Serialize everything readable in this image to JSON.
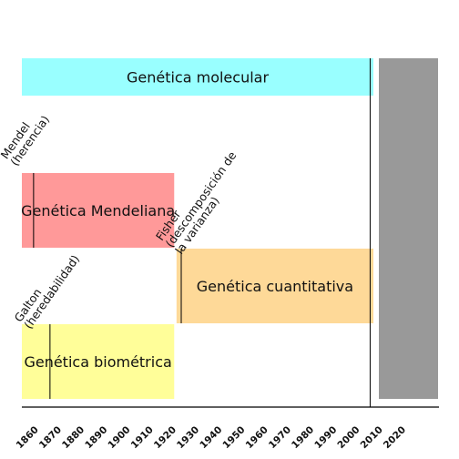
{
  "diagram": {
    "bands": [
      {
        "id": "molecular",
        "label": "Genética molecular",
        "start": 1860,
        "end": 2010,
        "row": "top",
        "color": "#99ffff"
      },
      {
        "id": "mendeliana",
        "label": "Genética Mendeliana",
        "start": 1860,
        "end": 1925,
        "row": "upper",
        "color": "#ff9999"
      },
      {
        "id": "cuantitativa",
        "label": "Genética cuantitativa",
        "start": 1926,
        "end": 2010,
        "row": "middle",
        "color": "#fed998"
      },
      {
        "id": "biometrica",
        "label": "Genética biométrica",
        "start": 1860,
        "end": 1925,
        "row": "bottom",
        "color": "#fffe99"
      },
      {
        "id": "future",
        "label": "",
        "start": 2011,
        "end": 2035,
        "row": "full",
        "color": "#999999"
      }
    ],
    "events": [
      {
        "id": "mendel",
        "year": 1865,
        "lines": [
          "Mendel",
          "(herencia)"
        ]
      },
      {
        "id": "galton",
        "year": 1872,
        "lines": [
          "Galton",
          "(heredabilidad)"
        ]
      },
      {
        "id": "fisher",
        "year": 1928,
        "lines": [
          "Fisher",
          "(descomposición de",
          "la varianza)"
        ]
      }
    ],
    "present_year": 2009,
    "axis": {
      "min": 1860,
      "max": 2020,
      "ticks": [
        "1860",
        "1870",
        "1880",
        "1890",
        "1900",
        "1910",
        "1920",
        "1930",
        "1940",
        "1950",
        "1960",
        "1970",
        "1980",
        "1990",
        "2000",
        "2010",
        "2020"
      ]
    },
    "colors": {
      "axis": "#000000",
      "event_line": "#000000"
    }
  }
}
